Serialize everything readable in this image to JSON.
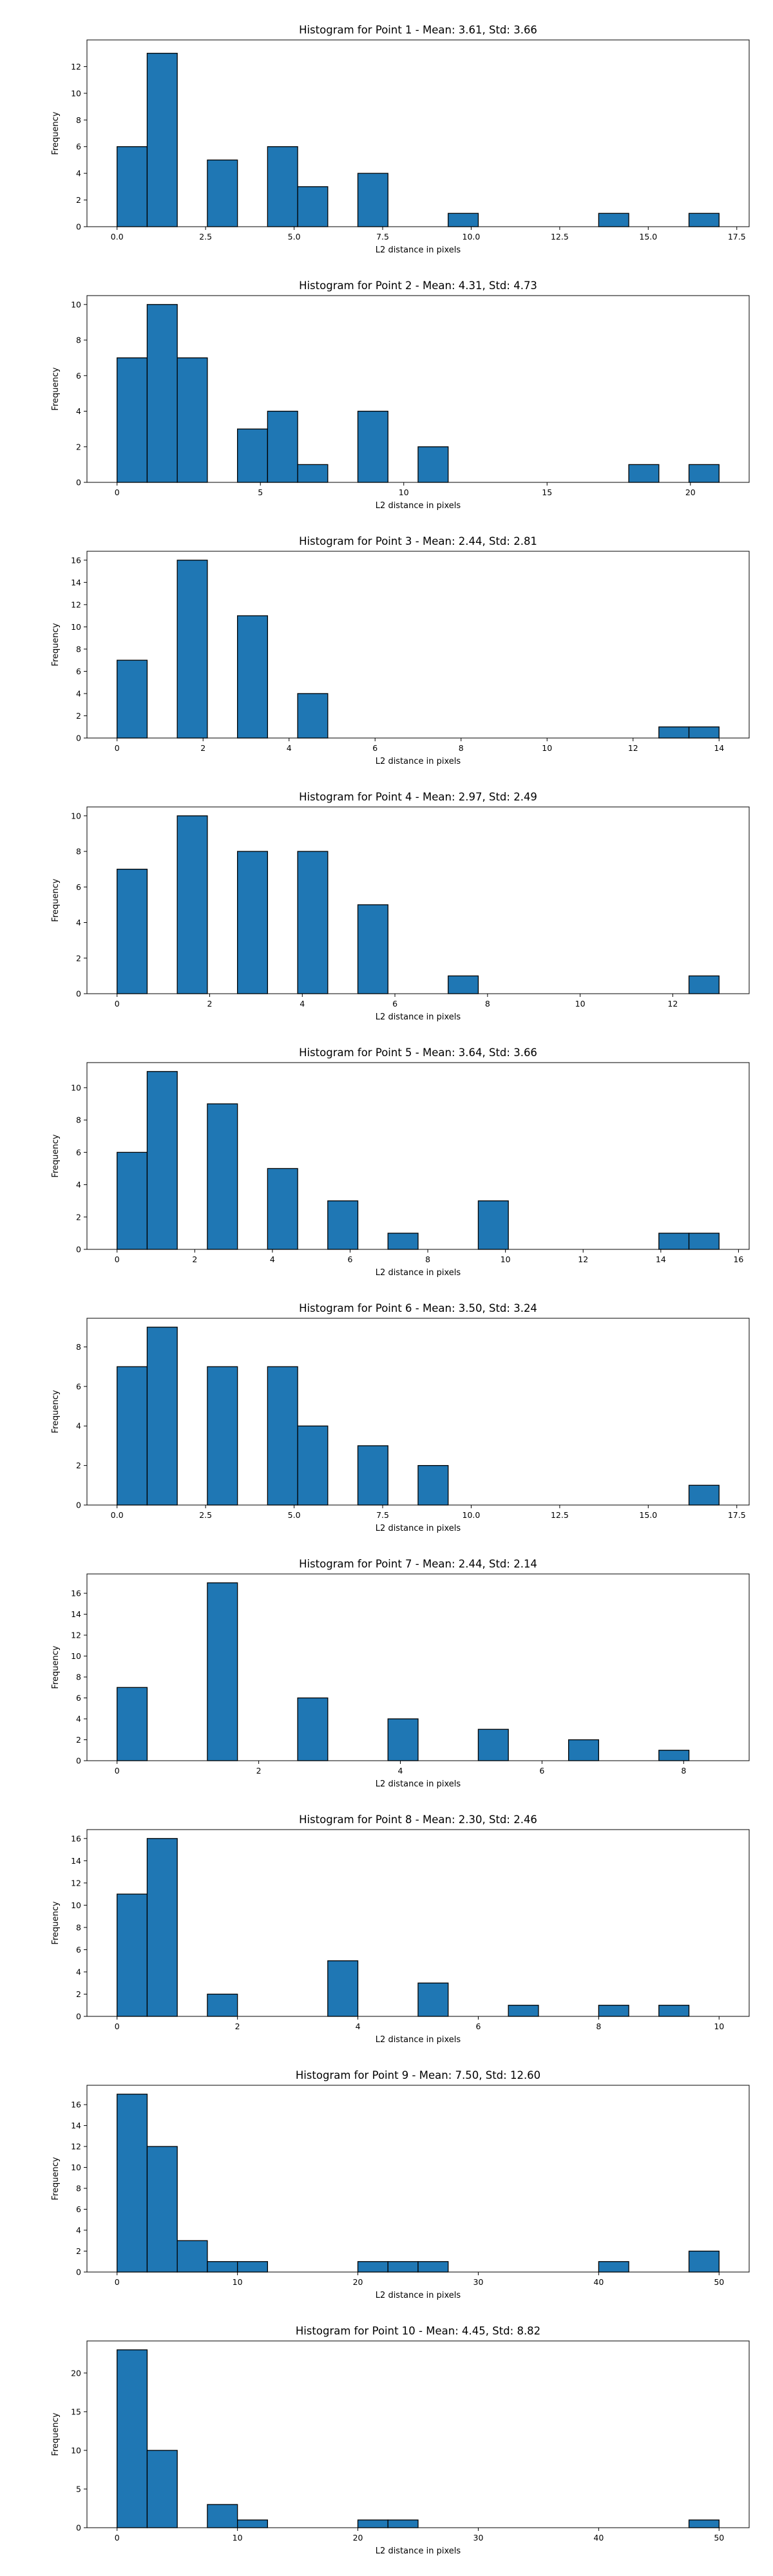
{
  "figure": {
    "background": "#ffffff"
  },
  "style": {
    "bar_color": "#1f77b4",
    "edge_color": "#000000"
  },
  "chart_data": [
    {
      "type": "bar",
      "title": "Histogram for Point 1 - Mean: 3.61, Std: 3.66",
      "xlabel": "L2 distance in pixels",
      "ylabel": "Frequency",
      "xlim": [
        -0.85,
        17.85
      ],
      "ylim": [
        0,
        14
      ],
      "xticks": [
        0.0,
        2.5,
        5.0,
        7.5,
        10.0,
        12.5,
        15.0,
        17.5
      ],
      "xtick_labels": [
        "0.0",
        "2.5",
        "5.0",
        "7.5",
        "10.0",
        "12.5",
        "15.0",
        "17.5"
      ],
      "yticks": [
        0,
        2,
        4,
        6,
        8,
        10,
        12
      ],
      "yticks_labels": [
        "0",
        "2",
        "4",
        "6",
        "8",
        "10",
        "12"
      ],
      "bin_edges": [
        0.0,
        0.85,
        1.7,
        2.55,
        3.4,
        4.25,
        5.1,
        5.95,
        6.8,
        7.65,
        8.5,
        9.35,
        10.2,
        11.05,
        11.9,
        12.75,
        13.6,
        14.45,
        15.3,
        16.15,
        17.0
      ],
      "counts": [
        6,
        13,
        0,
        5,
        0,
        6,
        3,
        0,
        4,
        0,
        0,
        1,
        0,
        0,
        0,
        0,
        1,
        0,
        0,
        1
      ]
    },
    {
      "type": "bar",
      "title": "Histogram for Point 2 - Mean: 4.31, Std: 4.73",
      "xlabel": "L2 distance in pixels",
      "ylabel": "Frequency",
      "xlim": [
        -1.05,
        22.05
      ],
      "ylim": [
        0,
        10.5
      ],
      "xticks": [
        0,
        5,
        10,
        15,
        20
      ],
      "xtick_labels": [
        "0",
        "5",
        "10",
        "15",
        "20"
      ],
      "yticks": [
        0,
        2,
        4,
        6,
        8,
        10
      ],
      "yticks_labels": [
        "0",
        "2",
        "4",
        "6",
        "8",
        "10"
      ],
      "bin_edges": [
        0.0,
        1.05,
        2.1,
        3.15,
        4.2,
        5.25,
        6.3,
        7.35,
        8.4,
        9.45,
        10.5,
        11.55,
        12.6,
        13.65,
        14.7,
        15.75,
        16.8,
        17.85,
        18.9,
        19.95,
        21.0
      ],
      "counts": [
        7,
        10,
        7,
        0,
        3,
        4,
        1,
        0,
        4,
        0,
        2,
        0,
        0,
        0,
        0,
        0,
        0,
        1,
        0,
        1
      ]
    },
    {
      "type": "bar",
      "title": "Histogram for Point 3 - Mean: 2.44, Std: 2.81",
      "xlabel": "L2 distance in pixels",
      "ylabel": "Frequency",
      "xlim": [
        -0.7,
        14.7
      ],
      "ylim": [
        0,
        16.8
      ],
      "xticks": [
        0,
        2,
        4,
        6,
        8,
        10,
        12,
        14
      ],
      "xtick_labels": [
        "0",
        "2",
        "4",
        "6",
        "8",
        "10",
        "12",
        "14"
      ],
      "yticks": [
        0,
        2,
        4,
        6,
        8,
        10,
        12,
        14,
        16
      ],
      "yticks_labels": [
        "0",
        "2",
        "4",
        "6",
        "8",
        "10",
        "12",
        "14",
        "16"
      ],
      "bin_edges": [
        0.0,
        0.7,
        1.4,
        2.1,
        2.8,
        3.5,
        4.2,
        4.9,
        5.6,
        6.3,
        7.0,
        7.7,
        8.4,
        9.1,
        9.8,
        10.5,
        11.2,
        11.9,
        12.6,
        13.3,
        14.0
      ],
      "counts": [
        7,
        0,
        16,
        0,
        11,
        0,
        4,
        0,
        0,
        0,
        0,
        0,
        0,
        0,
        0,
        0,
        0,
        0,
        1,
        1
      ]
    },
    {
      "type": "bar",
      "title": "Histogram for Point 4 - Mean: 2.97, Std: 2.49",
      "xlabel": "L2 distance in pixels",
      "ylabel": "Frequency",
      "xlim": [
        -0.65,
        13.65
      ],
      "ylim": [
        0,
        10.5
      ],
      "xticks": [
        0,
        2,
        4,
        6,
        8,
        10,
        12
      ],
      "xtick_labels": [
        "0",
        "2",
        "4",
        "6",
        "8",
        "10",
        "12"
      ],
      "yticks": [
        0,
        2,
        4,
        6,
        8,
        10
      ],
      "yticks_labels": [
        "0",
        "2",
        "4",
        "6",
        "8",
        "10"
      ],
      "bin_edges": [
        0.0,
        0.65,
        1.3,
        1.95,
        2.6,
        3.25,
        3.9,
        4.55,
        5.2,
        5.85,
        6.5,
        7.15,
        7.8,
        8.45,
        9.1,
        9.75,
        10.4,
        11.05,
        11.7,
        12.35,
        13.0
      ],
      "counts": [
        7,
        0,
        10,
        0,
        8,
        0,
        8,
        0,
        5,
        0,
        0,
        1,
        0,
        0,
        0,
        0,
        0,
        0,
        0,
        1
      ]
    },
    {
      "type": "bar",
      "title": "Histogram for Point 5 - Mean: 3.64, Std: 3.66",
      "xlabel": "L2 distance in pixels",
      "ylabel": "Frequency",
      "xlim": [
        -0.775,
        16.275
      ],
      "ylim": [
        0,
        11.55
      ],
      "xticks": [
        0,
        2,
        4,
        6,
        8,
        10,
        12,
        14,
        16
      ],
      "xtick_labels": [
        "0",
        "2",
        "4",
        "6",
        "8",
        "10",
        "12",
        "14",
        "16"
      ],
      "yticks": [
        0,
        2,
        4,
        6,
        8,
        10
      ],
      "yticks_labels": [
        "0",
        "2",
        "4",
        "6",
        "8",
        "10"
      ],
      "bin_edges": [
        0.0,
        0.775,
        1.55,
        2.325,
        3.1,
        3.875,
        4.65,
        5.425,
        6.2,
        6.975,
        7.75,
        8.525,
        9.3,
        10.075,
        10.85,
        11.625,
        12.4,
        13.175,
        13.95,
        14.725,
        15.5
      ],
      "counts": [
        6,
        11,
        0,
        9,
        0,
        5,
        0,
        3,
        0,
        1,
        0,
        0,
        3,
        0,
        0,
        0,
        0,
        0,
        1,
        1
      ]
    },
    {
      "type": "bar",
      "title": "Histogram for Point 6 - Mean: 3.50, Std: 3.24",
      "xlabel": "L2 distance in pixels",
      "ylabel": "Frequency",
      "xlim": [
        -0.85,
        17.85
      ],
      "ylim": [
        0,
        9.45
      ],
      "xticks": [
        0.0,
        2.5,
        5.0,
        7.5,
        10.0,
        12.5,
        15.0,
        17.5
      ],
      "xtick_labels": [
        "0.0",
        "2.5",
        "5.0",
        "7.5",
        "10.0",
        "12.5",
        "15.0",
        "17.5"
      ],
      "yticks": [
        0,
        2,
        4,
        6,
        8
      ],
      "yticks_labels": [
        "0",
        "2",
        "4",
        "6",
        "8"
      ],
      "bin_edges": [
        0.0,
        0.85,
        1.7,
        2.55,
        3.4,
        4.25,
        5.1,
        5.95,
        6.8,
        7.65,
        8.5,
        9.35,
        10.2,
        11.05,
        11.9,
        12.75,
        13.6,
        14.45,
        15.3,
        16.15,
        17.0
      ],
      "counts": [
        7,
        9,
        0,
        7,
        0,
        7,
        4,
        0,
        3,
        0,
        2,
        0,
        0,
        0,
        0,
        0,
        0,
        0,
        0,
        1
      ]
    },
    {
      "type": "bar",
      "title": "Histogram for Point 7 - Mean: 2.44, Std: 2.14",
      "xlabel": "L2 distance in pixels",
      "ylabel": "Frequency",
      "xlim": [
        -0.425,
        8.925
      ],
      "ylim": [
        0,
        17.85
      ],
      "xticks": [
        0,
        2,
        4,
        6,
        8
      ],
      "xtick_labels": [
        "0",
        "2",
        "4",
        "6",
        "8"
      ],
      "yticks": [
        0,
        2,
        4,
        6,
        8,
        10,
        12,
        14,
        16
      ],
      "yticks_labels": [
        "0",
        "2",
        "4",
        "6",
        "8",
        "10",
        "12",
        "14",
        "16"
      ],
      "bin_edges": [
        0.0,
        0.425,
        0.85,
        1.275,
        1.7,
        2.125,
        2.55,
        2.975,
        3.4,
        3.825,
        4.25,
        4.675,
        5.1,
        5.525,
        5.95,
        6.375,
        6.8,
        7.225,
        7.65,
        8.075,
        8.5
      ],
      "counts": [
        7,
        0,
        0,
        17,
        0,
        0,
        6,
        0,
        0,
        4,
        0,
        0,
        3,
        0,
        0,
        2,
        0,
        0,
        1,
        0
      ]
    },
    {
      "type": "bar",
      "title": "Histogram for Point 8 - Mean: 2.30, Std: 2.46",
      "xlabel": "L2 distance in pixels",
      "ylabel": "Frequency",
      "xlim": [
        -0.5,
        10.5
      ],
      "ylim": [
        0,
        16.8
      ],
      "xticks": [
        0,
        2,
        4,
        6,
        8,
        10
      ],
      "xtick_labels": [
        "0",
        "2",
        "4",
        "6",
        "8",
        "10"
      ],
      "yticks": [
        0,
        2,
        4,
        6,
        8,
        10,
        12,
        14,
        16
      ],
      "yticks_labels": [
        "0",
        "2",
        "4",
        "6",
        "8",
        "10",
        "12",
        "14",
        "16"
      ],
      "bin_edges": [
        0.0,
        0.5,
        1.0,
        1.5,
        2.0,
        2.5,
        3.0,
        3.5,
        4.0,
        4.5,
        5.0,
        5.5,
        6.0,
        6.5,
        7.0,
        7.5,
        8.0,
        8.5,
        9.0,
        9.5,
        10.0
      ],
      "counts": [
        11,
        16,
        0,
        2,
        0,
        0,
        0,
        5,
        0,
        0,
        3,
        0,
        0,
        1,
        0,
        0,
        1,
        0,
        1,
        0
      ]
    },
    {
      "type": "bar",
      "title": "Histogram for Point 9 - Mean: 7.50, Std: 12.60",
      "xlabel": "L2 distance in pixels",
      "ylabel": "Frequency",
      "xlim": [
        -2.5,
        52.5
      ],
      "ylim": [
        0,
        17.85
      ],
      "xticks": [
        0,
        10,
        20,
        30,
        40,
        50
      ],
      "xtick_labels": [
        "0",
        "10",
        "20",
        "30",
        "40",
        "50"
      ],
      "yticks": [
        0,
        2,
        4,
        6,
        8,
        10,
        12,
        14,
        16
      ],
      "yticks_labels": [
        "0",
        "2",
        "4",
        "6",
        "8",
        "10",
        "12",
        "14",
        "16"
      ],
      "bin_edges": [
        0.0,
        2.5,
        5.0,
        7.5,
        10.0,
        12.5,
        15.0,
        17.5,
        20.0,
        22.5,
        25.0,
        27.5,
        30.0,
        32.5,
        35.0,
        37.5,
        40.0,
        42.5,
        45.0,
        47.5,
        50.0
      ],
      "counts": [
        17,
        12,
        3,
        1,
        1,
        0,
        0,
        0,
        1,
        1,
        1,
        0,
        0,
        0,
        0,
        0,
        1,
        0,
        0,
        2
      ]
    },
    {
      "type": "bar",
      "title": "Histogram for Point 10 - Mean: 4.45, Std: 8.82",
      "xlabel": "L2 distance in pixels",
      "ylabel": "Frequency",
      "xlim": [
        -2.5,
        52.5
      ],
      "ylim": [
        0,
        24.15
      ],
      "xticks": [
        0,
        10,
        20,
        30,
        40,
        50
      ],
      "xtick_labels": [
        "0",
        "10",
        "20",
        "30",
        "40",
        "50"
      ],
      "yticks": [
        0,
        5,
        10,
        15,
        20
      ],
      "yticks_labels": [
        "0",
        "5",
        "10",
        "15",
        "20"
      ],
      "bin_edges": [
        0.0,
        2.5,
        5.0,
        7.5,
        10.0,
        12.5,
        15.0,
        17.5,
        20.0,
        22.5,
        25.0,
        27.5,
        30.0,
        32.5,
        35.0,
        37.5,
        40.0,
        42.5,
        45.0,
        47.5,
        50.0
      ],
      "counts": [
        23,
        10,
        0,
        3,
        1,
        0,
        0,
        0,
        1,
        1,
        0,
        0,
        0,
        0,
        0,
        0,
        0,
        0,
        0,
        1
      ]
    }
  ]
}
